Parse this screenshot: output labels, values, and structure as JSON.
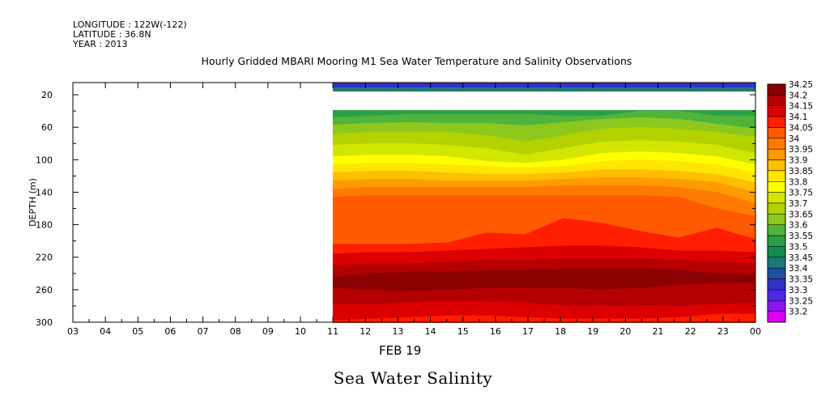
{
  "header": {
    "longitude": "LONGITUDE : 122W(-122)",
    "latitude": "LATITUDE : 36.8N",
    "year": "YEAR : 2013"
  },
  "chart_data": {
    "type": "heatmap",
    "title": "Hourly Gridded MBARI Mooring M1 Sea Water Temperature and Salinity Observations",
    "bottom_title": "Sea Water Salinity",
    "xlabel": "FEB 19",
    "ylabel": "DEPTH (m)",
    "x_ticks": [
      "03",
      "04",
      "05",
      "06",
      "07",
      "08",
      "09",
      "10",
      "11",
      "12",
      "13",
      "14",
      "15",
      "16",
      "17",
      "18",
      "19",
      "20",
      "21",
      "22",
      "23",
      "00"
    ],
    "y_ticks": [
      20,
      60,
      100,
      140,
      180,
      220,
      260,
      300
    ],
    "ylim": [
      300,
      5
    ],
    "data_start_hour": 11,
    "colorbar": {
      "levels": [
        "34.25",
        "34.2",
        "34.15",
        "34.1",
        "34.05",
        "34",
        "33.95",
        "33.9",
        "33.85",
        "33.8",
        "33.75",
        "33.7",
        "33.65",
        "33.6",
        "33.55",
        "33.5",
        "33.45",
        "33.4",
        "33.35",
        "33.3",
        "33.25",
        "33.2"
      ],
      "colors": [
        "#8b0000",
        "#b40000",
        "#dc0000",
        "#ff1e00",
        "#ff5a00",
        "#ff7a00",
        "#ff9a00",
        "#ffbe00",
        "#ffe600",
        "#ffff00",
        "#d2e600",
        "#b4d200",
        "#8cc81e",
        "#50b43c",
        "#2aa046",
        "#148c50",
        "#1e7878",
        "#1e50a0",
        "#3232c8",
        "#4b28e6",
        "#8c14f0",
        "#dc00f0"
      ]
    },
    "surface_bands": [
      {
        "from_depth": 5,
        "to_depth": 11,
        "value": 33.35
      },
      {
        "from_depth": 11,
        "to_depth": 16,
        "value": 33.45
      }
    ],
    "layers": [
      {
        "value": 33.55,
        "top": [
          39,
          39,
          39,
          39,
          39,
          39,
          39,
          39,
          39,
          39,
          39,
          39
        ],
        "bottom": [
          48,
          46,
          44,
          44,
          44,
          44,
          46,
          46,
          40,
          40,
          46,
          46
        ]
      },
      {
        "value": 33.6,
        "top": [
          48,
          46,
          44,
          44,
          44,
          44,
          46,
          46,
          40,
          40,
          46,
          46
        ],
        "bottom": [
          57,
          55,
          54,
          55,
          55,
          58,
          54,
          50,
          48,
          50,
          56,
          62
        ]
      },
      {
        "value": 33.65,
        "top": [
          57,
          55,
          54,
          55,
          55,
          58,
          54,
          50,
          48,
          50,
          56,
          62
        ],
        "bottom": [
          68,
          66,
          66,
          66,
          70,
          78,
          70,
          62,
          60,
          62,
          66,
          72
        ]
      },
      {
        "value": 33.7,
        "top": [
          68,
          66,
          66,
          66,
          70,
          78,
          70,
          62,
          60,
          62,
          66,
          72
        ],
        "bottom": [
          82,
          80,
          80,
          82,
          86,
          94,
          86,
          78,
          76,
          78,
          82,
          92
        ]
      },
      {
        "value": 33.75,
        "top": [
          82,
          80,
          80,
          82,
          86,
          94,
          86,
          78,
          76,
          78,
          82,
          92
        ],
        "bottom": [
          96,
          94,
          94,
          96,
          102,
          104,
          100,
          92,
          90,
          92,
          96,
          106
        ]
      },
      {
        "value": 33.8,
        "top": [
          96,
          94,
          94,
          96,
          102,
          104,
          100,
          92,
          90,
          92,
          96,
          106
        ],
        "bottom": [
          106,
          104,
          104,
          106,
          108,
          110,
          108,
          102,
          100,
          102,
          106,
          116
        ]
      },
      {
        "value": 33.85,
        "top": [
          106,
          104,
          104,
          106,
          108,
          110,
          108,
          102,
          100,
          102,
          106,
          116
        ],
        "bottom": [
          116,
          114,
          114,
          116,
          118,
          118,
          116,
          112,
          112,
          114,
          118,
          128
        ]
      },
      {
        "value": 33.9,
        "top": [
          116,
          114,
          114,
          116,
          118,
          118,
          116,
          112,
          112,
          114,
          118,
          128
        ],
        "bottom": [
          126,
          124,
          124,
          126,
          126,
          126,
          124,
          122,
          122,
          124,
          128,
          140
        ]
      },
      {
        "value": 33.95,
        "top": [
          126,
          124,
          124,
          126,
          126,
          126,
          124,
          122,
          122,
          124,
          128,
          140
        ],
        "bottom": [
          136,
          134,
          134,
          134,
          134,
          134,
          132,
          132,
          132,
          134,
          140,
          154
        ]
      },
      {
        "value": 34.0,
        "top": [
          136,
          134,
          134,
          134,
          134,
          134,
          132,
          132,
          132,
          134,
          140,
          154
        ],
        "bottom": [
          146,
          144,
          144,
          144,
          144,
          144,
          144,
          144,
          144,
          146,
          160,
          170
        ]
      },
      {
        "value": 34.05,
        "top": [
          146,
          144,
          144,
          144,
          144,
          144,
          144,
          144,
          144,
          146,
          160,
          170
        ],
        "bottom": [
          204,
          204,
          204,
          202,
          190,
          192,
          172,
          178,
          188,
          196,
          184,
          198
        ]
      },
      {
        "value": 34.1,
        "top": [
          204,
          204,
          204,
          202,
          190,
          192,
          172,
          178,
          188,
          196,
          184,
          198
        ],
        "bottom": [
          216,
          214,
          214,
          212,
          210,
          208,
          206,
          206,
          208,
          212,
          212,
          214
        ]
      },
      {
        "value": 34.15,
        "top": [
          216,
          214,
          214,
          212,
          210,
          208,
          206,
          206,
          208,
          212,
          212,
          214
        ],
        "bottom": [
          230,
          228,
          228,
          226,
          224,
          224,
          222,
          222,
          222,
          224,
          226,
          228
        ]
      },
      {
        "value": 34.2,
        "top": [
          230,
          228,
          228,
          226,
          224,
          224,
          222,
          222,
          222,
          224,
          226,
          228
        ],
        "bottom": [
          244,
          240,
          238,
          238,
          236,
          236,
          234,
          234,
          234,
          236,
          240,
          242
        ]
      },
      {
        "value": 34.25,
        "top": [
          244,
          240,
          238,
          238,
          236,
          236,
          234,
          234,
          234,
          236,
          240,
          242
        ],
        "bottom": [
          258,
          260,
          262,
          260,
          258,
          258,
          258,
          260,
          258,
          254,
          252,
          252
        ]
      },
      {
        "value": 34.2,
        "top": [
          258,
          260,
          262,
          260,
          258,
          258,
          258,
          260,
          258,
          254,
          252,
          252
        ],
        "bottom": [
          278,
          278,
          276,
          274,
          274,
          276,
          280,
          280,
          280,
          280,
          278,
          276
        ]
      },
      {
        "value": 34.15,
        "top": [
          278,
          278,
          276,
          274,
          274,
          276,
          280,
          280,
          280,
          280,
          278,
          276
        ],
        "bottom": [
          298,
          296,
          294,
          292,
          292,
          294,
          296,
          296,
          296,
          294,
          290,
          290
        ]
      },
      {
        "value": 34.1,
        "top": [
          298,
          296,
          294,
          292,
          292,
          294,
          296,
          296,
          296,
          294,
          290,
          290
        ],
        "bottom": [
          300,
          300,
          300,
          300,
          300,
          300,
          300,
          300,
          300,
          300,
          300,
          300
        ]
      }
    ]
  }
}
